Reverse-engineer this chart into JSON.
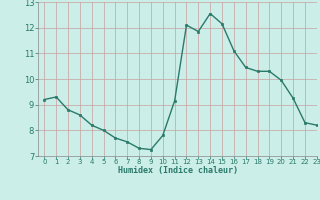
{
  "x": [
    0,
    1,
    2,
    3,
    4,
    5,
    6,
    7,
    8,
    9,
    10,
    11,
    12,
    13,
    14,
    15,
    16,
    17,
    18,
    19,
    20,
    21,
    22,
    23
  ],
  "y": [
    9.2,
    9.3,
    8.8,
    8.6,
    8.2,
    8.0,
    7.7,
    7.55,
    7.3,
    7.25,
    7.8,
    9.15,
    12.1,
    11.85,
    12.55,
    12.15,
    11.1,
    10.45,
    10.3,
    10.3,
    9.95,
    9.25,
    8.3,
    8.2
  ],
  "xlabel": "Humidex (Indice chaleur)",
  "ylim": [
    7,
    13
  ],
  "xlim": [
    -0.5,
    23
  ],
  "yticks": [
    7,
    8,
    9,
    10,
    11,
    12,
    13
  ],
  "xticks": [
    0,
    1,
    2,
    3,
    4,
    5,
    6,
    7,
    8,
    9,
    10,
    11,
    12,
    13,
    14,
    15,
    16,
    17,
    18,
    19,
    20,
    21,
    22,
    23
  ],
  "line_color": "#2a7a6a",
  "marker_color": "#2a7a6a",
  "bg_color": "#cceee8",
  "grid_color_v": "#c8a0a0",
  "grid_color_h": "#c8a0a0",
  "axis_color": "#888888",
  "tick_label_color": "#2a7a6a",
  "xlabel_color": "#2a7a6a"
}
